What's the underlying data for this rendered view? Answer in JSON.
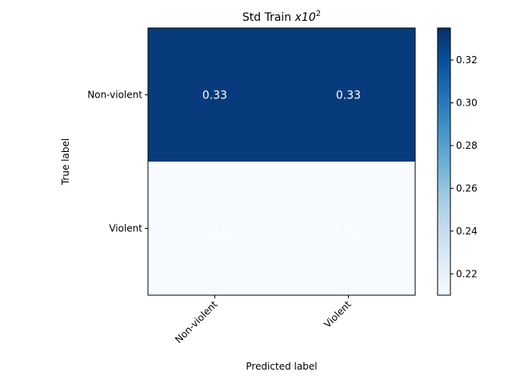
{
  "chart_data": {
    "type": "heatmap",
    "title": "Std Train",
    "title_suffix_base": "x10",
    "title_suffix_exp": "2",
    "xlabel": "Predicted label",
    "ylabel": "True label",
    "x_categories": [
      "Non-violent",
      "Violent"
    ],
    "y_categories": [
      "Non-violent",
      "Violent"
    ],
    "values": [
      [
        0.33,
        0.33
      ],
      [
        0.21,
        0.21
      ]
    ],
    "cell_labels": [
      [
        "0.33",
        "0.33"
      ],
      [
        "0.21",
        "0.21"
      ]
    ],
    "colormap": "Blues",
    "vmin": 0.21,
    "vmax": 0.335,
    "colorbar_ticks": [
      0.22,
      0.24,
      0.26,
      0.28,
      0.3,
      0.32
    ],
    "colorbar_tick_labels": [
      "0.22",
      "0.24",
      "0.26",
      "0.28",
      "0.30",
      "0.32"
    ],
    "cell_text_color": "#ffffff"
  }
}
